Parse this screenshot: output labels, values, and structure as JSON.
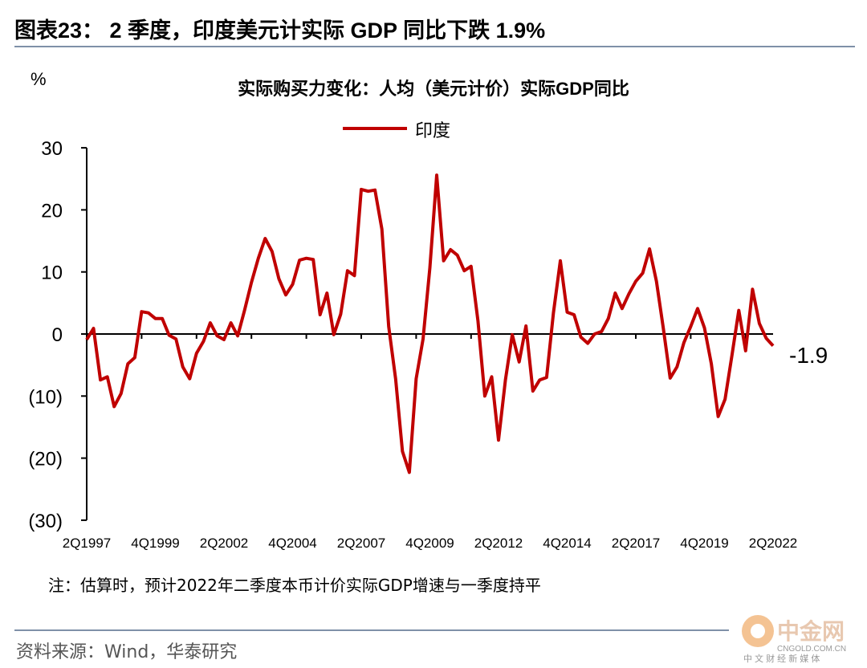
{
  "header": {
    "title": "图表23：  2 季度，印度美元计实际 GDP 同比下跌 1.9%"
  },
  "note": "注：估算时，预计2022年二季度本币计价实际GDP增速与一季度持平",
  "source": "资料来源：Wind，华泰研究",
  "watermark": {
    "name": "中金网",
    "url": "CNGOLD.COM.CN",
    "sub": "中 文 财 经 新 媒 体"
  },
  "colors": {
    "line": "#c00000",
    "rule": "#7f90a8"
  },
  "chart_data": {
    "type": "line",
    "title": "实际购买力变化：人均（美元计价）实际GDP同比",
    "ylabel": "%",
    "xlabel": "",
    "ylim": [
      -30,
      30
    ],
    "yticks": [
      30,
      20,
      10,
      0,
      -10,
      -20,
      -30
    ],
    "ytick_labels": [
      "30",
      "20",
      "10",
      "0",
      "(10)",
      "(20)",
      "(30)"
    ],
    "x_start": "2Q1997",
    "x_end": "2Q2022",
    "xtick_labels": [
      "2Q1997",
      "4Q1999",
      "2Q2002",
      "4Q2004",
      "2Q2007",
      "4Q2009",
      "2Q2012",
      "4Q2014",
      "2Q2017",
      "4Q2019",
      "2Q2022"
    ],
    "xtick_label_every_quarters": 10,
    "xtick_mark_every_quarters": 8,
    "legend": {
      "position": "top-center",
      "entries": [
        "印度"
      ]
    },
    "end_label": "-1.9",
    "series": [
      {
        "name": "印度",
        "values": [
          -0.9,
          0.9,
          -7.4,
          -6.9,
          -11.7,
          -9.6,
          -4.8,
          -3.8,
          3.6,
          3.4,
          2.5,
          2.5,
          -0.2,
          -0.8,
          -5.3,
          -7.2,
          -3.1,
          -1.2,
          1.8,
          -0.3,
          -0.9,
          1.8,
          -0.3,
          3.8,
          8.3,
          12.2,
          15.4,
          13.3,
          8.9,
          6.3,
          8.0,
          11.9,
          12.2,
          12.0,
          3.1,
          6.6,
          -0.1,
          3.2,
          10.2,
          9.4,
          23.3,
          23.0,
          23.2,
          16.9,
          1.2,
          -7.2,
          -18.9,
          -22.3,
          -7.2,
          -0.8,
          10.7,
          25.6,
          11.8,
          13.6,
          12.7,
          10.2,
          10.9,
          2.1,
          -10.0,
          -6.9,
          -17.1,
          -7.4,
          -0.1,
          -4.5,
          1.3,
          -9.2,
          -7.4,
          -7.0,
          3.4,
          11.8,
          3.5,
          3.1,
          -0.5,
          -1.5,
          0.0,
          0.4,
          2.5,
          6.6,
          4.1,
          6.5,
          8.5,
          9.8,
          13.7,
          8.5,
          1.0,
          -7.1,
          -5.3,
          -1.4,
          1.2,
          4.1,
          1.0,
          -4.8,
          -13.3,
          -10.5,
          -3.5,
          3.8,
          -2.7,
          7.2,
          1.7,
          -0.7,
          -1.9
        ]
      }
    ]
  }
}
